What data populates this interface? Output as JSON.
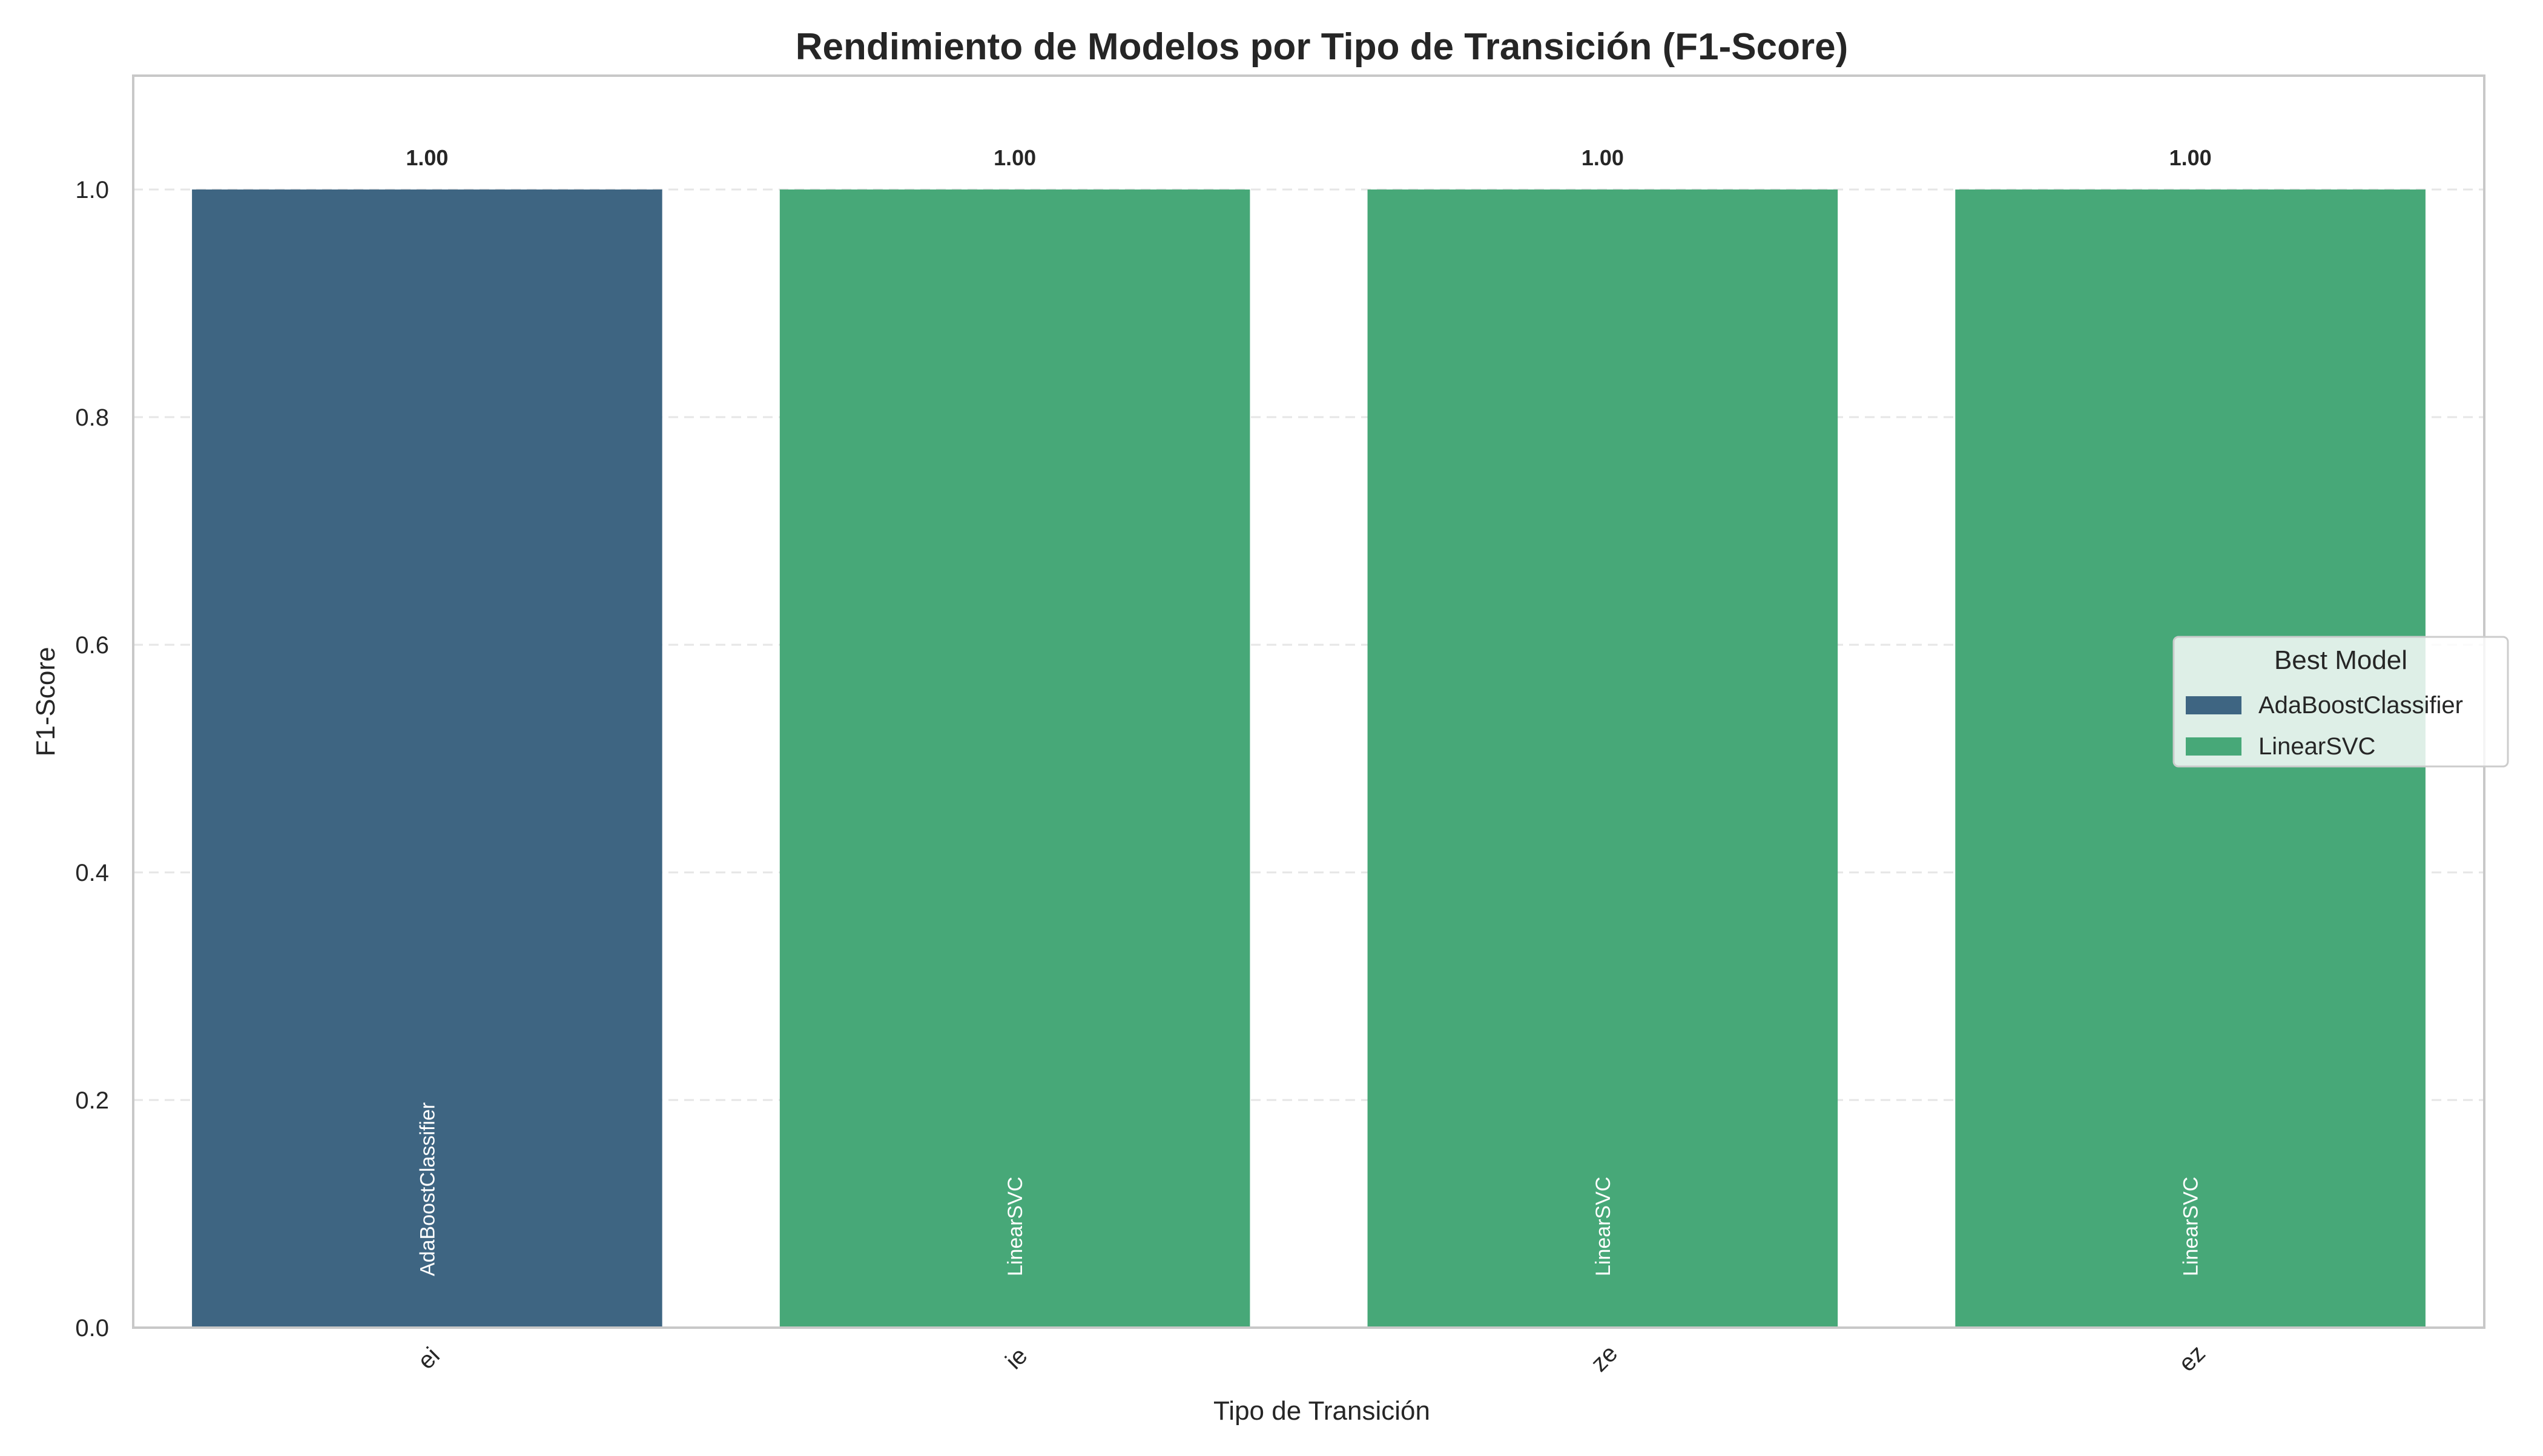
{
  "chart_data": {
    "type": "bar",
    "title": "Rendimiento de Modelos por Tipo de Transición (F1-Score)",
    "xlabel": "Tipo de Transición",
    "ylabel": "F1-Score",
    "ylim": [
      0,
      1.1
    ],
    "yticks": [
      "0.0",
      "0.2",
      "0.4",
      "0.6",
      "0.8",
      "1.0"
    ],
    "ytick_values": [
      0,
      0.2,
      0.4,
      0.6,
      0.8,
      1.0
    ],
    "grid": "y-dashed",
    "categories": [
      "ei",
      "ie",
      "ze",
      "ez"
    ],
    "values": [
      1.0,
      1.0,
      1.0,
      1.0
    ],
    "value_labels": [
      "1.00",
      "1.00",
      "1.00",
      "1.00"
    ],
    "bar_models": [
      "AdaBoostClassifier",
      "LinearSVC",
      "LinearSVC",
      "LinearSVC"
    ],
    "legend": {
      "title": "Best Model",
      "placement": "center-right",
      "entries": [
        {
          "label": "AdaBoostClassifier",
          "color": "#3e6582"
        },
        {
          "label": "LinearSVC",
          "color": "#47a878"
        }
      ]
    },
    "colors": {
      "AdaBoostClassifier": "#3e6582",
      "LinearSVC": "#47a878",
      "axis": "#c8c8c8",
      "grid": "#e6e6e6",
      "text": "#262626"
    }
  }
}
